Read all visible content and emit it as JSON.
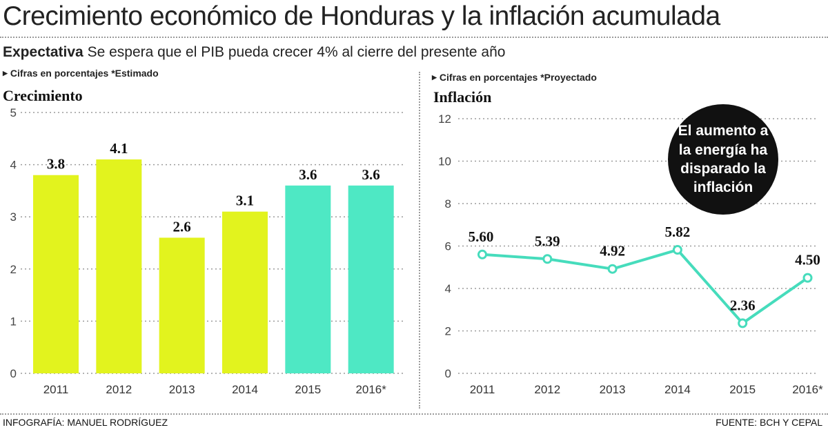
{
  "header": {
    "title": "Crecimiento económico de Honduras y la inflación acumulada",
    "subtitle_bold": "Expectativa",
    "subtitle_text": "Se espera que el PIB pueda crecer 4% al cierre del presente año"
  },
  "left_panel": {
    "note": "Cifras en porcentajes *Estimado",
    "title": "Crecimiento"
  },
  "right_panel": {
    "note": "Cifras en porcentajes *Proyectado",
    "title": "Inflación",
    "callout": "El aumento a la energía ha disparado la inflación"
  },
  "footer": {
    "credit": "INFOGRAFÍA: MANUEL RODRÍGUEZ",
    "source": "FUENTE: BCH Y CEPAL"
  },
  "colors": {
    "bar_actual": "#e2f31e",
    "bar_estimated": "#4ee8c4",
    "line": "#46dcbc",
    "callout_bg": "#111111"
  },
  "chart_data": [
    {
      "type": "bar",
      "title": "Crecimiento",
      "categories": [
        "2011",
        "2012",
        "2013",
        "2014",
        "2015",
        "2016*"
      ],
      "values": [
        3.8,
        4.1,
        2.6,
        3.1,
        3.6,
        3.6
      ],
      "value_labels": [
        "3.8",
        "4.1",
        "2.6",
        "3.1",
        "3.6",
        "3.6"
      ],
      "estimated": [
        false,
        false,
        false,
        false,
        true,
        true
      ],
      "ylim": [
        0,
        5
      ],
      "yticks": [
        0,
        1,
        2,
        3,
        4,
        5
      ],
      "grid": true
    },
    {
      "type": "line",
      "title": "Inflación",
      "categories": [
        "2011",
        "2012",
        "2013",
        "2014",
        "2015",
        "2016*"
      ],
      "values": [
        5.6,
        5.39,
        4.92,
        5.82,
        2.36,
        4.5
      ],
      "value_labels": [
        "5.60",
        "5.39",
        "4.92",
        "5.82",
        "2.36",
        "4.50"
      ],
      "ylim": [
        0,
        12
      ],
      "yticks": [
        0,
        2,
        4,
        6,
        8,
        10,
        12
      ],
      "grid": true
    }
  ]
}
